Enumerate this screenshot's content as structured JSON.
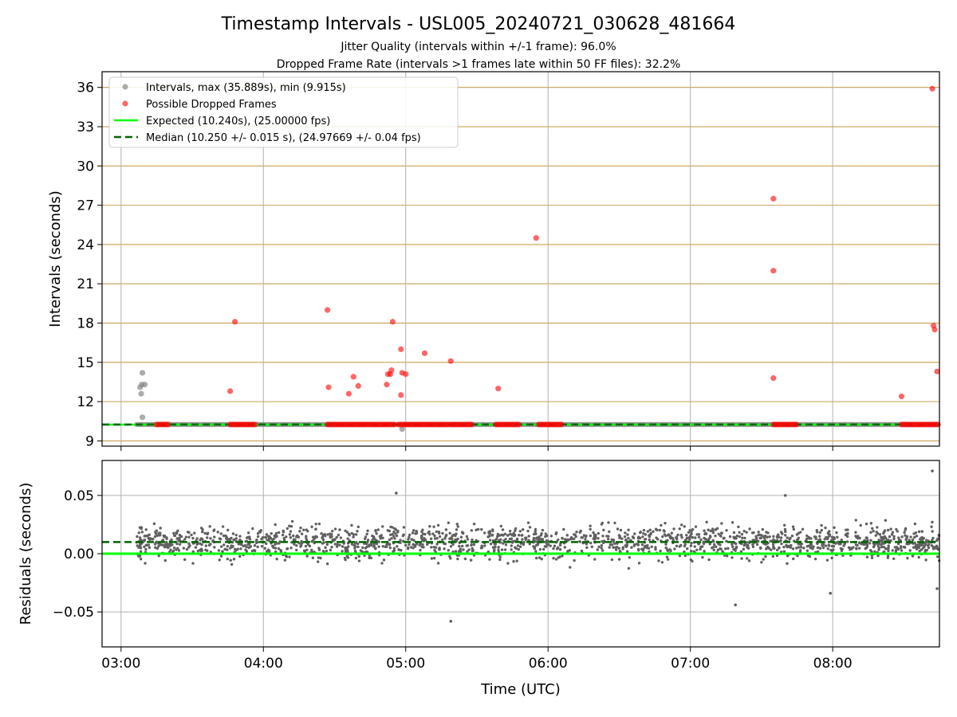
{
  "figure": {
    "title": "Timestamp Intervals - USL005_20240721_030628_481664",
    "subtitle_1": "Jitter Quality (intervals within +/-1 frame): 96.0%",
    "subtitle_2": "Dropped Frame Rate (intervals >1 frames late within 50 FF files): 32.2%"
  },
  "chart_data": [
    {
      "type": "scatter",
      "panel": "top",
      "ylabel": "Intervals (seconds)",
      "xlabel": "",
      "x_axis": "time",
      "xlim": [
        "02:52:00",
        "08:45:00"
      ],
      "ylim": [
        8.6,
        37.2
      ],
      "yticks": [
        9,
        12,
        15,
        18,
        21,
        24,
        27,
        30,
        33,
        36
      ],
      "xticks": [
        "03:00",
        "04:00",
        "05:00",
        "06:00",
        "07:00",
        "08:00"
      ],
      "grid": "on",
      "legend_position": "upper left",
      "legend": [
        "Intervals, max (35.889s), min (9.915s)",
        "Possible Dropped Frames",
        "Expected (10.240s), (25.00000 fps)",
        "Median (10.250 +/- 0.015 s), (24.97669 +/- 0.04 fps)"
      ],
      "colors": {
        "intervals": "#808080",
        "dropped": "#ff0000",
        "expected": "#00ff00",
        "median": "#006400",
        "horizontal_grid": "#c8a050",
        "vertical_grid": "#b0b0b0"
      },
      "series": [
        {
          "name": "Intervals, max (35.889s), min (9.915s)",
          "baseline_x_range": [
            "03:06:30",
            "08:45:00"
          ],
          "baseline_y": 10.25,
          "points": [
            [
              "03:08:00",
              13.1
            ],
            [
              "03:08:30",
              12.6
            ],
            [
              "03:08:45",
              13.3
            ],
            [
              "03:09:00",
              14.2
            ],
            [
              "03:10:00",
              13.3
            ],
            [
              "03:09:00",
              10.8
            ],
            [
              "04:58:30",
              9.9
            ]
          ]
        },
        {
          "name": "Possible Dropped Frames",
          "clusters": [
            [
              "03:15:00",
              "03:20:00"
            ],
            [
              "03:46:00",
              "03:57:00"
            ],
            [
              "04:27:00",
              "04:56:00"
            ],
            [
              "04:57:00",
              "05:18:00"
            ],
            [
              "05:19:00",
              "05:28:00"
            ],
            [
              "05:38:00",
              "05:48:00"
            ],
            [
              "05:56:00",
              "06:06:00"
            ],
            [
              "07:35:00",
              "07:45:00"
            ],
            [
              "08:29:00",
              "08:45:00"
            ]
          ],
          "cluster_y": 10.25,
          "points": [
            [
              "03:46:00",
              12.8
            ],
            [
              "03:48:00",
              18.1
            ],
            [
              "04:27:00",
              19.0
            ],
            [
              "04:27:30",
              13.1
            ],
            [
              "04:36:00",
              12.6
            ],
            [
              "04:38:00",
              13.9
            ],
            [
              "04:40:00",
              13.2
            ],
            [
              "04:52:00",
              13.3
            ],
            [
              "04:52:30",
              14.1
            ],
            [
              "04:53:30",
              14.1
            ],
            [
              "04:54:00",
              14.4
            ],
            [
              "04:54:30",
              18.1
            ],
            [
              "04:58:00",
              12.5
            ],
            [
              "04:58:00",
              16.0
            ],
            [
              "04:58:30",
              14.2
            ],
            [
              "05:00:00",
              14.1
            ],
            [
              "05:08:00",
              15.7
            ],
            [
              "05:19:00",
              15.1
            ],
            [
              "05:39:00",
              13.0
            ],
            [
              "05:55:00",
              24.5
            ],
            [
              "07:35:00",
              27.5
            ],
            [
              "07:35:00",
              22.0
            ],
            [
              "07:35:00",
              13.8
            ],
            [
              "08:29:00",
              12.4
            ],
            [
              "08:42:00",
              35.9
            ],
            [
              "08:42:30",
              17.8
            ],
            [
              "08:43:00",
              17.5
            ],
            [
              "08:44:00",
              14.3
            ]
          ]
        },
        {
          "name": "Expected (10.240s), (25.00000 fps)",
          "y": 10.24
        },
        {
          "name": "Median (10.250 +/- 0.015 s), (24.97669 +/- 0.04 fps)",
          "y": 10.25
        }
      ]
    },
    {
      "type": "scatter",
      "panel": "bottom",
      "ylabel": "Residuals (seconds)",
      "xlabel": "Time (UTC)",
      "x_axis": "time",
      "xlim": [
        "02:52:00",
        "08:45:00"
      ],
      "ylim": [
        -0.08,
        0.08
      ],
      "yticks": [
        -0.05,
        0.0,
        0.05
      ],
      "ytick_labels": [
        "−0.05",
        "0.00",
        "0.05"
      ],
      "xticks": [
        "03:00",
        "04:00",
        "05:00",
        "06:00",
        "07:00",
        "08:00"
      ],
      "grid": "on",
      "colors": {
        "residuals": "#606060",
        "expected": "#00ff00",
        "median": "#006400"
      },
      "residuals": {
        "x_range": [
          "03:06:30",
          "08:45:00"
        ],
        "count": 1800,
        "typical_range": [
          -0.03,
          0.045
        ],
        "center": 0.01,
        "outliers": [
          [
            "04:56:00",
            0.052
          ],
          [
            "05:19:00",
            -0.058
          ],
          [
            "07:19:00",
            -0.044
          ],
          [
            "07:40:00",
            0.05
          ],
          [
            "07:59:00",
            -0.034
          ],
          [
            "08:42:00",
            0.071
          ],
          [
            "08:44:00",
            -0.03
          ]
        ]
      },
      "lines": [
        {
          "name": "Expected",
          "y": 0.0
        },
        {
          "name": "Median",
          "y": 0.01
        }
      ]
    }
  ]
}
